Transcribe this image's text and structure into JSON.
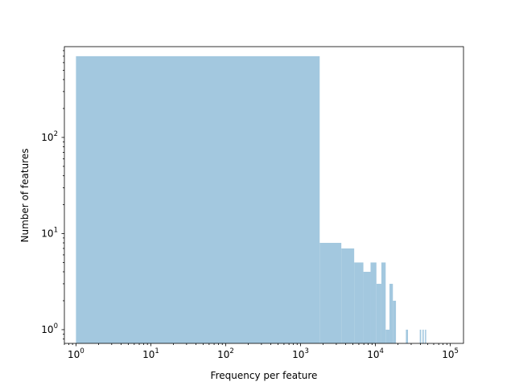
{
  "chart_data": {
    "type": "bar",
    "title": "",
    "xlabel": "Frequency per feature",
    "ylabel": "Number of features",
    "xscale": "log",
    "yscale": "log",
    "xlim": [
      0.7,
      150000
    ],
    "ylim": [
      0.72,
      880
    ],
    "grid": false,
    "bar_color": "#a3c8df",
    "xticks": [
      {
        "value": 1,
        "base": "10",
        "exp": "0"
      },
      {
        "value": 10,
        "base": "10",
        "exp": "1"
      },
      {
        "value": 100,
        "base": "10",
        "exp": "2"
      },
      {
        "value": 1000,
        "base": "10",
        "exp": "3"
      },
      {
        "value": 10000,
        "base": "10",
        "exp": "4"
      },
      {
        "value": 100000,
        "base": "10",
        "exp": "5"
      }
    ],
    "yticks": [
      {
        "value": 1,
        "base": "10",
        "exp": "0"
      },
      {
        "value": 10,
        "base": "10",
        "exp": "1"
      },
      {
        "value": 100,
        "base": "10",
        "exp": "2"
      }
    ],
    "bins": [
      {
        "x0": 1,
        "x1": 1800,
        "count": 700
      },
      {
        "x0": 1800,
        "x1": 3500,
        "count": 8
      },
      {
        "x0": 3500,
        "x1": 5200,
        "count": 7
      },
      {
        "x0": 5200,
        "x1": 6900,
        "count": 5
      },
      {
        "x0": 6900,
        "x1": 8600,
        "count": 4
      },
      {
        "x0": 8600,
        "x1": 10300,
        "count": 5
      },
      {
        "x0": 10300,
        "x1": 12000,
        "count": 3
      },
      {
        "x0": 12000,
        "x1": 13700,
        "count": 5
      },
      {
        "x0": 13700,
        "x1": 15400,
        "count": 1
      },
      {
        "x0": 15400,
        "x1": 17100,
        "count": 3
      },
      {
        "x0": 17100,
        "x1": 18800,
        "count": 2
      },
      {
        "x0": 25500,
        "x1": 27200,
        "count": 1
      },
      {
        "x0": 39100,
        "x1": 40800,
        "count": 1
      },
      {
        "x0": 42500,
        "x1": 44200,
        "count": 1
      },
      {
        "x0": 45900,
        "x1": 47600,
        "count": 1
      }
    ]
  }
}
